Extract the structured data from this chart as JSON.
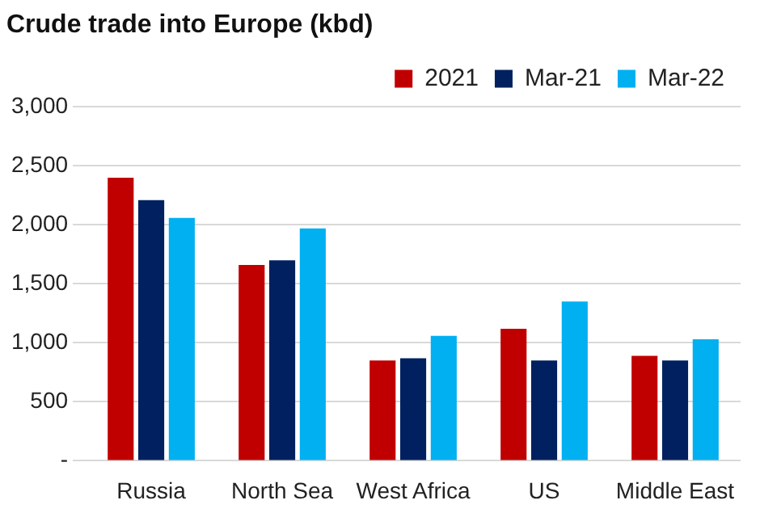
{
  "chart_data": {
    "type": "bar",
    "title": "Crude trade into Europe (kbd)",
    "categories": [
      "Russia",
      "North Sea",
      "West Africa",
      "US",
      "Middle East"
    ],
    "series": [
      {
        "name": "2021",
        "color": "#c00000",
        "values": [
          2400,
          1660,
          850,
          1120,
          890
        ]
      },
      {
        "name": "Mar-21",
        "color": "#002060",
        "values": [
          2210,
          1700,
          870,
          850,
          850
        ]
      },
      {
        "name": "Mar-22",
        "color": "#00b0f0",
        "values": [
          2060,
          1970,
          1060,
          1350,
          1030
        ]
      }
    ],
    "ylim": [
      0,
      3000
    ],
    "yticks": [
      {
        "value": 0,
        "label": "-"
      },
      500,
      {
        "value": 1000,
        "label": "1,000"
      },
      {
        "value": 1500,
        "label": "1,500"
      },
      {
        "value": 2000,
        "label": "2,000"
      },
      {
        "value": 2500,
        "label": "2,500"
      },
      {
        "value": 3000,
        "label": "3,000"
      }
    ],
    "grid": "y",
    "legend": "top right"
  }
}
